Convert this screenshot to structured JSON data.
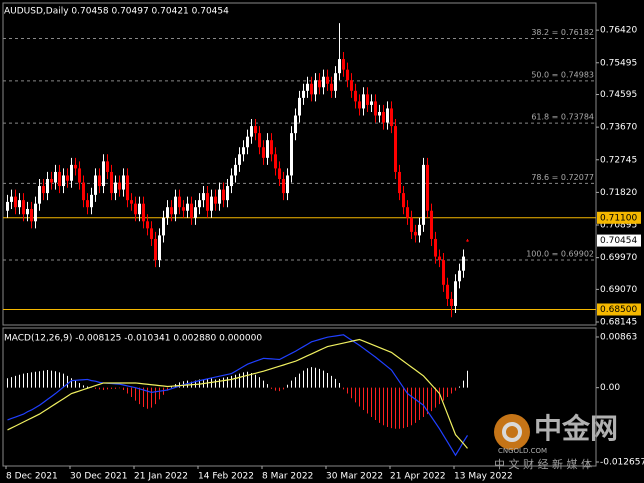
{
  "chart_data": [
    {
      "type": "candlestick",
      "title": "AUDUSD,Daily  0.70458 0.70497 0.70421 0.70454",
      "up_color": "#ffffff",
      "down_color": "#ff0000",
      "ylim": [
        0.6806,
        0.7719
      ],
      "yticks": [
        {
          "value": 0.7642,
          "label": "0.76420"
        },
        {
          "value": 0.75495,
          "label": "0.75495"
        },
        {
          "value": 0.74595,
          "label": "0.74595"
        },
        {
          "value": 0.7367,
          "label": "0.73670"
        },
        {
          "value": 0.72745,
          "label": "0.72745"
        },
        {
          "value": 0.7182,
          "label": "0.71820"
        },
        {
          "value": 0.70895,
          "label": "0.70895"
        },
        {
          "value": 0.6997,
          "label": "0.69970"
        },
        {
          "value": 0.6907,
          "label": "0.69070"
        },
        {
          "value": 0.68145,
          "label": "0.68145"
        }
      ],
      "levels": [
        {
          "value": 0.711,
          "label": "0.71100"
        },
        {
          "value": 0.685,
          "label": "0.68500"
        }
      ],
      "level_color": "#f5b800",
      "fibonacci": [
        {
          "value": 0.76182,
          "label": "38.2 = 0.76182"
        },
        {
          "value": 0.74983,
          "label": "50.0 = 0.74983"
        },
        {
          "value": 0.73784,
          "label": "61.8 = 0.73784"
        },
        {
          "value": 0.72077,
          "label": "78.6 = 0.72077"
        },
        {
          "value": 0.69902,
          "label": "100.0 = 0.69902"
        }
      ],
      "open": [
        0.713,
        0.7155,
        0.717,
        0.714,
        0.716,
        0.712,
        0.7135,
        0.71,
        0.715,
        0.72,
        0.718,
        0.722,
        0.721,
        0.724,
        0.72,
        0.723,
        0.7215,
        0.726,
        0.725,
        0.721,
        0.716,
        0.714,
        0.7175,
        0.723,
        0.72,
        0.727,
        0.724,
        0.718,
        0.721,
        0.719,
        0.723,
        0.716,
        0.715,
        0.712,
        0.715,
        0.71,
        0.708,
        0.705,
        0.699,
        0.706,
        0.711,
        0.714,
        0.712,
        0.717,
        0.714,
        0.713,
        0.715,
        0.711,
        0.714,
        0.716,
        0.718,
        0.713,
        0.717,
        0.715,
        0.719,
        0.716,
        0.72,
        0.723,
        0.726,
        0.729,
        0.731,
        0.734,
        0.737,
        0.735,
        0.731,
        0.728,
        0.733,
        0.729,
        0.725,
        0.722,
        0.718,
        0.723,
        0.735,
        0.74,
        0.745,
        0.747,
        0.749,
        0.746,
        0.75,
        0.748,
        0.751,
        0.749,
        0.747,
        0.752,
        0.756,
        0.753,
        0.75,
        0.747,
        0.744,
        0.742,
        0.746,
        0.743,
        0.744,
        0.74,
        0.741,
        0.738,
        0.742,
        0.737,
        0.724,
        0.718,
        0.714,
        0.711,
        0.707,
        0.706,
        0.709,
        0.726,
        0.713,
        0.705,
        0.7,
        0.699,
        0.692,
        0.688,
        0.686,
        0.693,
        0.696,
        0.70458
      ],
      "high": [
        0.7175,
        0.719,
        0.719,
        0.718,
        0.718,
        0.7155,
        0.7155,
        0.717,
        0.722,
        0.722,
        0.724,
        0.724,
        0.726,
        0.726,
        0.725,
        0.725,
        0.728,
        0.728,
        0.727,
        0.723,
        0.718,
        0.7195,
        0.725,
        0.725,
        0.729,
        0.729,
        0.726,
        0.723,
        0.723,
        0.725,
        0.725,
        0.718,
        0.717,
        0.717,
        0.717,
        0.712,
        0.71,
        0.707,
        0.708,
        0.713,
        0.716,
        0.716,
        0.719,
        0.719,
        0.716,
        0.717,
        0.717,
        0.716,
        0.718,
        0.72,
        0.72,
        0.719,
        0.719,
        0.721,
        0.721,
        0.722,
        0.725,
        0.728,
        0.731,
        0.733,
        0.736,
        0.739,
        0.739,
        0.737,
        0.733,
        0.735,
        0.735,
        0.731,
        0.727,
        0.724,
        0.725,
        0.737,
        0.742,
        0.747,
        0.749,
        0.751,
        0.751,
        0.752,
        0.752,
        0.753,
        0.753,
        0.751,
        0.754,
        0.7662,
        0.758,
        0.755,
        0.752,
        0.749,
        0.746,
        0.748,
        0.748,
        0.746,
        0.746,
        0.743,
        0.743,
        0.744,
        0.744,
        0.739,
        0.726,
        0.72,
        0.716,
        0.713,
        0.709,
        0.711,
        0.728,
        0.728,
        0.715,
        0.707,
        0.702,
        0.701,
        0.694,
        0.69,
        0.695,
        0.698,
        0.702,
        0.70497
      ],
      "low": [
        0.711,
        0.7135,
        0.712,
        0.712,
        0.71,
        0.71,
        0.708,
        0.708,
        0.713,
        0.716,
        0.716,
        0.719,
        0.719,
        0.718,
        0.718,
        0.7195,
        0.7195,
        0.723,
        0.719,
        0.714,
        0.712,
        0.712,
        0.7155,
        0.718,
        0.718,
        0.722,
        0.716,
        0.716,
        0.717,
        0.717,
        0.714,
        0.713,
        0.71,
        0.71,
        0.708,
        0.706,
        0.703,
        0.697,
        0.697,
        0.704,
        0.709,
        0.71,
        0.71,
        0.712,
        0.711,
        0.711,
        0.709,
        0.709,
        0.712,
        0.714,
        0.711,
        0.711,
        0.713,
        0.713,
        0.714,
        0.714,
        0.718,
        0.721,
        0.724,
        0.727,
        0.729,
        0.732,
        0.733,
        0.729,
        0.726,
        0.726,
        0.727,
        0.723,
        0.72,
        0.716,
        0.716,
        0.721,
        0.733,
        0.738,
        0.743,
        0.745,
        0.744,
        0.744,
        0.746,
        0.746,
        0.747,
        0.745,
        0.745,
        0.75,
        0.751,
        0.748,
        0.745,
        0.742,
        0.74,
        0.74,
        0.741,
        0.741,
        0.738,
        0.738,
        0.736,
        0.736,
        0.735,
        0.722,
        0.716,
        0.712,
        0.709,
        0.705,
        0.704,
        0.704,
        0.707,
        0.711,
        0.703,
        0.698,
        0.697,
        0.69,
        0.686,
        0.6828,
        0.684,
        0.691,
        0.694,
        0.70421
      ],
      "close": [
        0.7155,
        0.717,
        0.714,
        0.716,
        0.712,
        0.7135,
        0.71,
        0.715,
        0.72,
        0.718,
        0.722,
        0.721,
        0.724,
        0.72,
        0.723,
        0.7215,
        0.726,
        0.725,
        0.721,
        0.716,
        0.714,
        0.7175,
        0.723,
        0.72,
        0.727,
        0.724,
        0.718,
        0.721,
        0.719,
        0.723,
        0.716,
        0.715,
        0.712,
        0.715,
        0.71,
        0.708,
        0.705,
        0.699,
        0.706,
        0.711,
        0.714,
        0.712,
        0.717,
        0.714,
        0.713,
        0.715,
        0.711,
        0.714,
        0.716,
        0.718,
        0.713,
        0.717,
        0.715,
        0.719,
        0.716,
        0.72,
        0.723,
        0.726,
        0.729,
        0.731,
        0.734,
        0.737,
        0.735,
        0.731,
        0.728,
        0.733,
        0.729,
        0.725,
        0.722,
        0.718,
        0.723,
        0.735,
        0.74,
        0.745,
        0.747,
        0.749,
        0.746,
        0.75,
        0.748,
        0.751,
        0.749,
        0.747,
        0.752,
        0.756,
        0.753,
        0.75,
        0.747,
        0.744,
        0.742,
        0.746,
        0.743,
        0.744,
        0.74,
        0.741,
        0.738,
        0.742,
        0.737,
        0.724,
        0.718,
        0.714,
        0.711,
        0.707,
        0.706,
        0.709,
        0.726,
        0.713,
        0.705,
        0.7,
        0.699,
        0.692,
        0.688,
        0.686,
        0.693,
        0.696,
        0.7,
        0.70454
      ]
    },
    {
      "type": "macd",
      "title": "MACD(12,26,9) -0.008125 -0.010341 0.002880 0.000000",
      "categories": [
        "8 Dec 2021",
        null,
        null,
        null,
        null,
        null,
        null,
        null,
        null,
        null,
        null,
        null,
        null,
        null,
        null,
        null,
        "30 Dec 2021",
        null,
        null,
        null,
        null,
        null,
        null,
        null,
        null,
        null,
        null,
        null,
        null,
        null,
        null,
        null,
        "21 Jan 2022",
        null,
        null,
        null,
        null,
        null,
        null,
        null,
        null,
        null,
        null,
        null,
        null,
        null,
        null,
        null,
        "14 Feb 2022",
        null,
        null,
        null,
        null,
        null,
        null,
        null,
        null,
        null,
        null,
        null,
        null,
        null,
        null,
        null,
        "8 Mar 2022",
        null,
        null,
        null,
        null,
        null,
        null,
        null,
        null,
        null,
        null,
        null,
        null,
        null,
        null,
        null,
        "30 Mar 2022",
        null,
        null,
        null,
        null,
        null,
        null,
        null,
        null,
        null,
        null,
        null,
        null,
        null,
        null,
        null,
        "21 Apr 2022",
        null,
        null,
        null,
        null,
        null,
        null,
        null,
        null,
        null,
        null,
        null,
        null,
        null,
        null,
        null,
        "13 May 2022",
        null,
        null,
        null
      ],
      "ylim": [
        -0.01334,
        0.01016
      ],
      "yticks": [
        0.00863,
        {
          "value": 0,
          "label": "0.00"
        },
        -0.012657
      ],
      "series": [
        {
          "style": "histogram",
          "color": "#ffffff",
          "negative_color": "#ff2020",
          "values": [
            0.0016,
            0.0018,
            0.002,
            0.0022,
            0.0024,
            0.0025,
            0.0026,
            0.0027,
            0.0028,
            0.0029,
            0.003,
            0.0029,
            0.0028,
            0.0026,
            0.0024,
            0.002,
            0.0016,
            0.0012,
            0.0008,
            0.0004,
            0.0002,
            0.0001,
            -0.0002,
            -0.0003,
            -0.0004,
            -0.0003,
            -0.0002,
            -0.0002,
            -0.0001,
            -0.0004,
            -0.001,
            -0.0016,
            -0.0022,
            -0.0028,
            -0.0033,
            -0.0036,
            -0.0034,
            -0.0028,
            -0.002,
            -0.0012,
            -0.0005,
            0.0002,
            0.0006,
            0.0009,
            0.0011,
            0.0012,
            0.001,
            0.0012,
            0.0014,
            0.0013,
            0.0015,
            0.0016,
            0.0014,
            0.0015,
            0.0017,
            0.0018,
            0.002,
            0.0022,
            0.0024,
            0.0026,
            0.0027,
            0.0025,
            0.0022,
            0.0018,
            0.0012,
            0.0006,
            -0.0002,
            -0.0005,
            -0.0006,
            -0.0003,
            0.0005,
            0.0012,
            0.0018,
            0.0024,
            0.0029,
            0.0033,
            0.0035,
            0.0034,
            0.0032,
            0.0029,
            0.0025,
            0.002,
            0.0015,
            0.0008,
            -0.0003,
            -0.001,
            -0.0018,
            -0.0025,
            -0.0032,
            -0.0038,
            -0.0044,
            -0.005,
            -0.0055,
            -0.006,
            -0.0064,
            -0.0067,
            -0.0069,
            -0.007,
            -0.007,
            -0.0069,
            -0.0067,
            -0.0064,
            -0.006,
            -0.0055,
            -0.005,
            -0.0045,
            -0.004,
            -0.0034,
            -0.0028,
            -0.0022,
            -0.0016,
            -0.001,
            -0.0005,
            0.0002,
            0.0012,
            0.00288
          ]
        },
        {
          "style": "line",
          "color": "#2040ff",
          "values": [
            -0.0055,
            -0.00525,
            -0.005,
            -0.00475,
            -0.0045,
            -0.0041,
            -0.0038,
            -0.0034,
            -0.003,
            -0.0025,
            -0.002,
            -0.0015,
            -0.001,
            -0.00045,
            0.0001,
            0.00065,
            0.0012,
            0.00125,
            0.0013,
            0.00135,
            0.0014,
            0.0012,
            0.0011,
            0.0009,
            0.0008,
            0.00075,
            0.0007,
            0.00065,
            0.0006,
            0.00045,
            0.0003,
            0.00015,
            0.0,
            -0.0002,
            -0.0004,
            -0.0006,
            -0.0008,
            -0.0007,
            -0.0006,
            -0.0005,
            -0.0004,
            -0.00018,
            5e-05,
            0.00028,
            0.0005,
            0.00068,
            0.00085,
            0.00103,
            0.0012,
            0.00135,
            0.0015,
            0.00165,
            0.0018,
            0.00195,
            0.0021,
            0.00225,
            0.0024,
            0.0028,
            0.0032,
            0.0036,
            0.004,
            0.00425,
            0.0045,
            0.00475,
            0.005,
            0.00495,
            0.0049,
            0.00485,
            0.0048,
            0.00515,
            0.0055,
            0.00585,
            0.0062,
            0.0066,
            0.007,
            0.0074,
            0.0078,
            0.008,
            0.0082,
            0.0084,
            0.0086,
            0.0087,
            0.0088,
            0.0089,
            0.009,
            0.00855,
            0.0081,
            0.00765,
            0.0072,
            0.0067,
            0.0062,
            0.0057,
            0.0052,
            0.00465,
            0.0041,
            0.00355,
            0.003,
            0.002,
            0.001,
            0.0,
            -0.001,
            -0.0015,
            -0.002,
            -0.0025,
            -0.003,
            -0.004,
            -0.005,
            -0.006,
            -0.007,
            -0.00813,
            -0.00925,
            -0.01038,
            -0.0115,
            -0.0104,
            -0.0092,
            -0.008125
          ]
        },
        {
          "style": "line",
          "color": "#f0f060",
          "values": [
            -0.0072,
            -0.00686,
            -0.00653,
            -0.00619,
            -0.00585,
            -0.00551,
            -0.00518,
            -0.00484,
            -0.0045,
            -0.00406,
            -0.00363,
            -0.00319,
            -0.00275,
            -0.00231,
            -0.00188,
            -0.00144,
            -0.001,
            -0.00078,
            -0.00055,
            -0.00033,
            -0.0001,
            0.00013,
            0.00035,
            0.00058,
            0.0008,
            0.0008,
            0.0008,
            0.0008,
            0.0008,
            0.0008,
            0.0008,
            0.0008,
            0.0008,
            0.00073,
            0.00065,
            0.00058,
            0.0005,
            0.00043,
            0.00035,
            0.00028,
            0.0002,
            0.00025,
            0.0003,
            0.00035,
            0.0004,
            0.00045,
            0.0005,
            0.00055,
            0.0006,
            0.0007,
            0.0008,
            0.0009,
            0.001,
            0.0011,
            0.0012,
            0.0013,
            0.0014,
            0.00158,
            0.00175,
            0.00193,
            0.0021,
            0.00228,
            0.00245,
            0.00263,
            0.0028,
            0.00301,
            0.00323,
            0.00344,
            0.00365,
            0.00386,
            0.00408,
            0.00429,
            0.0045,
            0.00481,
            0.00513,
            0.00544,
            0.00575,
            0.00606,
            0.00638,
            0.00669,
            0.007,
            0.00715,
            0.0073,
            0.00745,
            0.0076,
            0.00775,
            0.0079,
            0.00805,
            0.0082,
            0.00793,
            0.00765,
            0.00738,
            0.0071,
            0.00683,
            0.00655,
            0.00628,
            0.006,
            0.0055,
            0.005,
            0.0045,
            0.004,
            0.0035,
            0.003,
            0.0025,
            0.002,
            0.00125,
            0.0005,
            -0.00025,
            -0.001,
            -0.00275,
            -0.0045,
            -0.00625,
            -0.008,
            -0.00877,
            -0.00953,
            -0.010341
          ]
        }
      ]
    }
  ],
  "watermark": {
    "brand": "中金网",
    "site": "CNGOLD.COM",
    "tagline": "中 文 财 经 新 媒 体"
  }
}
